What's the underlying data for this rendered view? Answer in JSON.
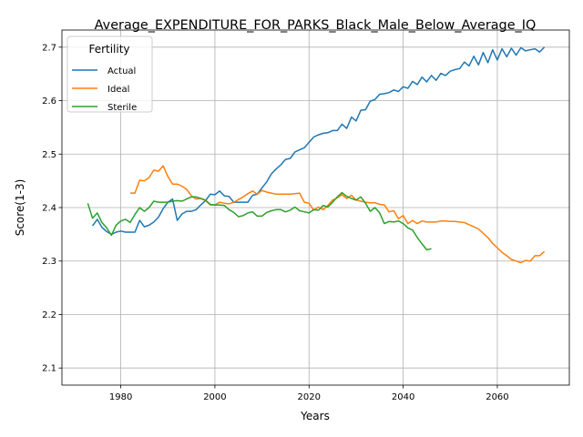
{
  "chart_data": {
    "type": "line",
    "title": "Average_EXPENDITURE_FOR_PARKS_Black_Male_Below_Average_IQ",
    "xlabel": "Years",
    "ylabel": "Score(1-3)",
    "xlim": [
      1967.5,
      2075.3
    ],
    "ylim": [
      2.068,
      2.732
    ],
    "xticks": [
      1980,
      2000,
      2020,
      2040,
      2060
    ],
    "yticks": [
      2.1,
      2.2,
      2.3,
      2.4,
      2.5,
      2.6,
      2.7
    ],
    "grid": true,
    "legend": {
      "title": "Fertility",
      "position": "top-left"
    },
    "series": [
      {
        "name": "Actual",
        "color": "#1f77b4",
        "x": [
          1974,
          1975,
          1976,
          1977,
          1978,
          1979,
          1980,
          1981,
          1982,
          1983,
          1984,
          1985,
          1986,
          1987,
          1988,
          1989,
          1990,
          1991,
          1992,
          1993,
          1994,
          1995,
          1996,
          1997,
          1998,
          1999,
          2000,
          2001,
          2002,
          2003,
          2004,
          2005,
          2006,
          2007,
          2008,
          2009,
          2010,
          2011,
          2012,
          2013,
          2014,
          2015,
          2016,
          2017,
          2018,
          2019,
          2020,
          2021,
          2022,
          2023,
          2024,
          2025,
          2026,
          2027,
          2028,
          2029,
          2030,
          2031,
          2032,
          2033,
          2034,
          2035,
          2036,
          2037,
          2038,
          2039,
          2040,
          2041,
          2042,
          2043,
          2044,
          2045,
          2046,
          2047,
          2048,
          2049,
          2050,
          2051,
          2052,
          2053,
          2054,
          2055,
          2056,
          2057,
          2058,
          2059,
          2060,
          2061,
          2062,
          2063,
          2064,
          2065,
          2066,
          2067,
          2068,
          2069,
          2070
        ],
        "y": [
          2.366,
          2.378,
          2.363,
          2.355,
          2.35,
          2.354,
          2.356,
          2.354,
          2.354,
          2.354,
          2.376,
          2.364,
          2.367,
          2.373,
          2.382,
          2.398,
          2.41,
          2.416,
          2.376,
          2.388,
          2.393,
          2.393,
          2.396,
          2.405,
          2.413,
          2.425,
          2.424,
          2.431,
          2.422,
          2.421,
          2.41,
          2.41,
          2.41,
          2.41,
          2.423,
          2.425,
          2.437,
          2.448,
          2.463,
          2.472,
          2.48,
          2.49,
          2.492,
          2.504,
          2.508,
          2.512,
          2.522,
          2.532,
          2.536,
          2.539,
          2.54,
          2.544,
          2.544,
          2.556,
          2.548,
          2.569,
          2.562,
          2.582,
          2.583,
          2.599,
          2.602,
          2.612,
          2.613,
          2.615,
          2.62,
          2.617,
          2.626,
          2.623,
          2.636,
          2.63,
          2.644,
          2.635,
          2.647,
          2.638,
          2.651,
          2.647,
          2.655,
          2.658,
          2.66,
          2.672,
          2.665,
          2.683,
          2.667,
          2.69,
          2.671,
          2.695,
          2.676,
          2.697,
          2.682,
          2.698,
          2.685,
          2.699,
          2.693,
          2.695,
          2.697,
          2.691,
          2.7
        ]
      },
      {
        "name": "Ideal",
        "color": "#ff7f0e",
        "x": [
          1982,
          1983,
          1984,
          1985,
          1986,
          1987,
          1988,
          1989,
          1990,
          1991,
          1992,
          1993,
          1994,
          1995,
          1996,
          1997,
          1998,
          1999,
          2000,
          2001,
          2002,
          2003,
          2004,
          2005,
          2006,
          2007,
          2008,
          2009,
          2010,
          2011,
          2012,
          2013,
          2014,
          2015,
          2016,
          2017,
          2018,
          2019,
          2020,
          2021,
          2022,
          2023,
          2024,
          2025,
          2026,
          2027,
          2028,
          2029,
          2030,
          2031,
          2032,
          2033,
          2034,
          2035,
          2036,
          2037,
          2038,
          2039,
          2040,
          2041,
          2042,
          2043,
          2044,
          2045,
          2046,
          2047,
          2048,
          2049,
          2050,
          2051,
          2052,
          2053,
          2054,
          2055,
          2056,
          2057,
          2058,
          2059,
          2060,
          2061,
          2062,
          2063,
          2064,
          2065,
          2066,
          2067,
          2068,
          2069,
          2070
        ],
        "y": [
          2.427,
          2.427,
          2.451,
          2.45,
          2.456,
          2.47,
          2.468,
          2.478,
          2.458,
          2.444,
          2.444,
          2.44,
          2.434,
          2.422,
          2.416,
          2.417,
          2.413,
          2.405,
          2.405,
          2.41,
          2.408,
          2.407,
          2.41,
          2.415,
          2.42,
          2.426,
          2.431,
          2.425,
          2.432,
          2.429,
          2.427,
          2.425,
          2.425,
          2.425,
          2.425,
          2.426,
          2.427,
          2.41,
          2.408,
          2.395,
          2.401,
          2.396,
          2.404,
          2.414,
          2.418,
          2.424,
          2.417,
          2.423,
          2.414,
          2.412,
          2.41,
          2.409,
          2.409,
          2.406,
          2.405,
          2.392,
          2.394,
          2.379,
          2.385,
          2.37,
          2.376,
          2.37,
          2.375,
          2.373,
          2.373,
          2.373,
          2.375,
          2.375,
          2.374,
          2.374,
          2.373,
          2.372,
          2.368,
          2.364,
          2.36,
          2.352,
          2.344,
          2.333,
          2.325,
          2.316,
          2.31,
          2.303,
          2.3,
          2.297,
          2.301,
          2.3,
          2.31,
          2.31,
          2.318
        ]
      },
      {
        "name": "Sterile",
        "color": "#2ca02c",
        "x": [
          1973,
          1974,
          1975,
          1976,
          1977,
          1978,
          1979,
          1980,
          1981,
          1982,
          1983,
          1984,
          1985,
          1986,
          1987,
          1988,
          1989,
          1990,
          1991,
          1992,
          1993,
          1994,
          1995,
          1996,
          1997,
          1998,
          1999,
          2000,
          2001,
          2002,
          2003,
          2004,
          2005,
          2006,
          2007,
          2008,
          2009,
          2010,
          2011,
          2012,
          2013,
          2014,
          2015,
          2016,
          2017,
          2018,
          2019,
          2020,
          2021,
          2022,
          2023,
          2024,
          2025,
          2026,
          2027,
          2028,
          2029,
          2030,
          2031,
          2032,
          2033,
          2034,
          2035,
          2036,
          2037,
          2038,
          2039,
          2040,
          2041,
          2042,
          2043,
          2044,
          2045,
          2046
        ],
        "y": [
          2.408,
          2.38,
          2.39,
          2.372,
          2.362,
          2.348,
          2.367,
          2.375,
          2.378,
          2.372,
          2.387,
          2.4,
          2.393,
          2.4,
          2.412,
          2.41,
          2.41,
          2.41,
          2.412,
          2.413,
          2.412,
          2.416,
          2.42,
          2.42,
          2.417,
          2.414,
          2.406,
          2.405,
          2.405,
          2.404,
          2.396,
          2.391,
          2.383,
          2.385,
          2.39,
          2.392,
          2.384,
          2.384,
          2.391,
          2.394,
          2.396,
          2.396,
          2.392,
          2.395,
          2.401,
          2.394,
          2.392,
          2.39,
          2.396,
          2.395,
          2.404,
          2.401,
          2.41,
          2.42,
          2.428,
          2.421,
          2.417,
          2.414,
          2.42,
          2.408,
          2.393,
          2.4,
          2.39,
          2.37,
          2.374,
          2.373,
          2.375,
          2.37,
          2.362,
          2.358,
          2.344,
          2.332,
          2.321,
          2.323
        ]
      }
    ]
  }
}
